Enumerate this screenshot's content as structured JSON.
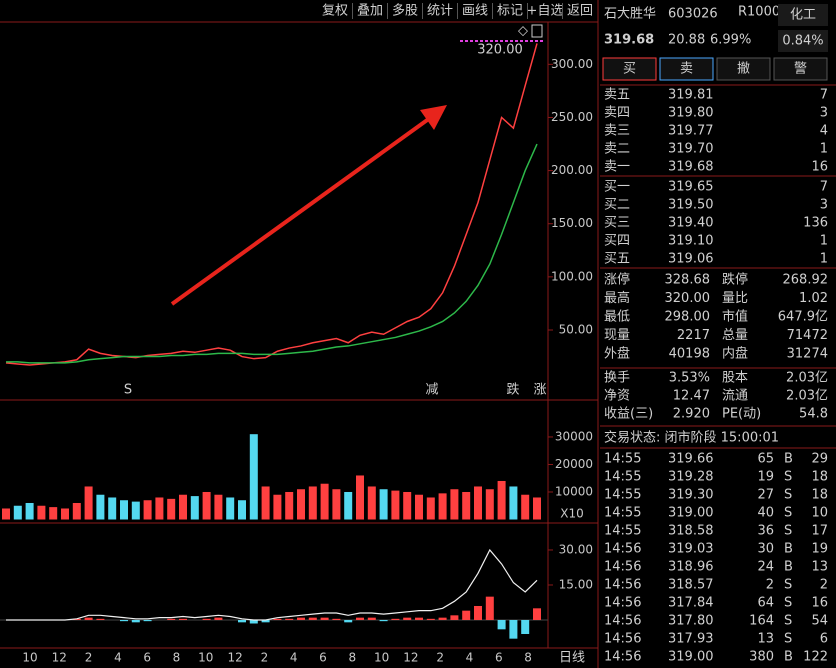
{
  "toolbar": [
    "复权",
    "叠加",
    "多股",
    "统计",
    "画线",
    "标记",
    "+自选",
    "返回"
  ],
  "quote": {
    "name": "石大胜华",
    "code": "603026",
    "badge": "R1000",
    "price": "319.68",
    "change": "20.88",
    "change_pct": "6.99%",
    "sector": "化工",
    "sector_pct": "0.84%"
  },
  "buttons": [
    "买",
    "卖",
    "撤",
    "警"
  ],
  "asks": [
    [
      "卖五",
      "319.81",
      7
    ],
    [
      "卖四",
      "319.80",
      3
    ],
    [
      "卖三",
      "319.77",
      4
    ],
    [
      "卖二",
      "319.70",
      1
    ],
    [
      "卖一",
      "319.68",
      16
    ]
  ],
  "bids": [
    [
      "买一",
      "319.65",
      7
    ],
    [
      "买二",
      "319.50",
      3
    ],
    [
      "买三",
      "319.40",
      136
    ],
    [
      "买四",
      "319.10",
      1
    ],
    [
      "买五",
      "319.06",
      1
    ]
  ],
  "stats": [
    [
      "涨停",
      "328.68",
      "跌停",
      "268.92"
    ],
    [
      "最高",
      "320.00",
      "量比",
      "1.02"
    ],
    [
      "最低",
      "298.00",
      "市值",
      "647.9亿"
    ],
    [
      "现量",
      "2217",
      "总量",
      "71472"
    ],
    [
      "外盘",
      "40198",
      "内盘",
      "31274"
    ]
  ],
  "stats2": [
    [
      "换手",
      "3.53%",
      "股本",
      "2.03亿"
    ],
    [
      "净资",
      "12.47",
      "流通",
      "2.03亿"
    ],
    [
      "收益(三)",
      "2.920",
      "PE(动)",
      "54.8"
    ]
  ],
  "status": "交易状态: 闭市阶段 15:00:01",
  "trades": [
    [
      "14:55",
      "319.66",
      65,
      "B",
      29
    ],
    [
      "14:55",
      "319.28",
      19,
      "S",
      18
    ],
    [
      "14:55",
      "319.30",
      27,
      "S",
      18
    ],
    [
      "14:55",
      "319.00",
      40,
      "S",
      10
    ],
    [
      "14:55",
      "318.58",
      36,
      "S",
      17
    ],
    [
      "14:56",
      "319.03",
      30,
      "B",
      19
    ],
    [
      "14:56",
      "318.96",
      24,
      "B",
      13
    ],
    [
      "14:56",
      "318.57",
      2,
      "S",
      2
    ],
    [
      "14:56",
      "317.84",
      64,
      "S",
      16
    ],
    [
      "14:56",
      "317.80",
      164,
      "S",
      54
    ],
    [
      "14:56",
      "317.93",
      13,
      "S",
      6
    ],
    [
      "14:56",
      "319.00",
      380,
      "B",
      122
    ]
  ],
  "x_labels": [
    "10",
    "12",
    "2",
    "4",
    "6",
    "8",
    "10",
    "12",
    "2",
    "4",
    "6",
    "8",
    "10",
    "12",
    "2",
    "4",
    "6",
    "8"
  ],
  "period": "日线",
  "chart_data": [
    {
      "type": "line",
      "ylim": [
        -14,
        337
      ],
      "yticks": [
        {
          "value": 50,
          "label": "50.00"
        },
        {
          "value": 100,
          "label": "100.00"
        },
        {
          "value": 150,
          "label": "150.00"
        },
        {
          "value": 200,
          "label": "200.00"
        },
        {
          "value": 250,
          "label": "250.00"
        },
        {
          "value": 300,
          "label": "300.00"
        }
      ],
      "annotations": [
        "320.00",
        "S",
        "减",
        "跌",
        "涨"
      ],
      "series": [
        {
          "color": "#ff4040",
          "values": [
            19,
            18,
            17,
            18,
            19,
            20,
            22,
            32,
            28,
            26,
            25,
            24,
            26,
            27,
            28,
            30,
            29,
            31,
            33,
            31,
            25,
            23,
            24,
            30,
            33,
            35,
            38,
            40,
            42,
            38,
            45,
            48,
            46,
            52,
            58,
            62,
            70,
            85,
            110,
            140,
            170,
            210,
            250,
            240,
            280,
            319.68
          ]
        },
        {
          "color": "#2db84a",
          "values": [
            20,
            20,
            19,
            19,
            19,
            19,
            20,
            22,
            23,
            24,
            25,
            25,
            25,
            25,
            26,
            26,
            27,
            27,
            28,
            28,
            28,
            27,
            27,
            27,
            28,
            29,
            30,
            32,
            34,
            35,
            37,
            39,
            41,
            43,
            46,
            49,
            53,
            58,
            66,
            77,
            92,
            112,
            140,
            170,
            200,
            225
          ]
        }
      ]
    },
    {
      "type": "bar",
      "ylim": [
        0,
        42700
      ],
      "yticks": [
        10000,
        20000,
        30000
      ],
      "unit_label": "X10",
      "colors": [
        "#ff4040",
        "#54d8f0"
      ],
      "values": [
        4000,
        5000,
        6000,
        5000,
        4500,
        4000,
        6000,
        12000,
        9000,
        8000,
        7000,
        6500,
        7000,
        8000,
        7500,
        9000,
        8500,
        10000,
        9000,
        8000,
        7000,
        31000,
        12000,
        9000,
        10000,
        11000,
        12000,
        13000,
        11000,
        10000,
        16000,
        12000,
        11000,
        10500,
        10000,
        9000,
        8000,
        9500,
        11000,
        10000,
        12000,
        11000,
        14000,
        12000,
        9000,
        8000
      ]
    },
    {
      "type": "macd",
      "ylim": [
        -12,
        40.7
      ],
      "yticks": [
        {
          "value": 15,
          "label": "15.00"
        },
        {
          "value": 30,
          "label": "30.00"
        }
      ],
      "colors": [
        "#ff4040",
        "#54d8f0"
      ],
      "line_color": "#f0f0f0",
      "line": [
        0,
        0,
        0,
        0,
        0,
        0,
        0.5,
        2,
        2,
        1.5,
        1,
        0.5,
        0.5,
        1,
        1,
        1.5,
        1,
        1.5,
        2,
        1.5,
        0.5,
        0,
        0,
        1,
        1.5,
        2,
        2.5,
        3,
        3,
        2,
        3,
        3,
        2.5,
        3,
        3.5,
        4,
        4,
        5,
        8,
        12,
        20,
        30,
        24,
        16,
        12,
        17
      ],
      "bars": [
        0,
        0,
        0,
        0,
        0,
        0,
        0.5,
        1,
        0.5,
        0,
        -0.5,
        -1,
        -0.5,
        0,
        0.5,
        0.5,
        0,
        0.5,
        1,
        0,
        -1,
        -1.5,
        -1,
        0.5,
        0.5,
        1,
        1,
        1,
        0.5,
        -1,
        1,
        1,
        -0.5,
        0.5,
        1,
        1,
        0.5,
        1,
        2,
        4,
        6,
        10,
        -4,
        -8,
        -6,
        5
      ]
    }
  ]
}
